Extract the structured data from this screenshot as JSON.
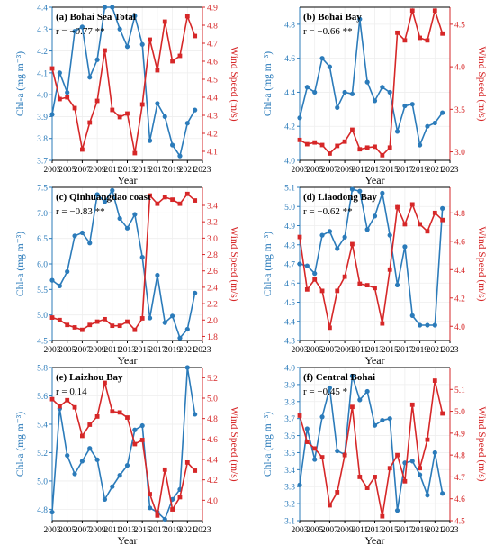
{
  "chart_data": [
    {
      "type": "line",
      "title": "(a) Bohai Sea Total",
      "annotation": "r = −0.77 **",
      "xlabel": "Year",
      "ylabel_left": "Chl-a (mg m⁻³)",
      "ylabel_right": "Wind Speed (m/s)",
      "xlim": [
        2003,
        2023
      ],
      "xticks": [
        2003,
        2005,
        2007,
        2009,
        2011,
        2013,
        2015,
        2017,
        2019,
        2021,
        2023
      ],
      "ylim_left": [
        3.7,
        4.4
      ],
      "yticks_left": [
        3.7,
        3.8,
        3.9,
        4.0,
        4.1,
        4.2,
        4.3,
        4.4
      ],
      "ylim_right": [
        4.05,
        4.9
      ],
      "yticks_right": [
        4.1,
        4.2,
        4.3,
        4.4,
        4.5,
        4.6,
        4.7,
        4.8,
        4.9
      ],
      "x": [
        2003,
        2004,
        2005,
        2006,
        2007,
        2008,
        2009,
        2010,
        2011,
        2012,
        2013,
        2014,
        2015,
        2016,
        2017,
        2018,
        2019,
        2020,
        2021,
        2022
      ],
      "series": [
        {
          "axis": "left",
          "values": [
            3.91,
            4.1,
            4.01,
            4.29,
            4.31,
            4.08,
            4.16,
            4.4,
            4.4,
            4.3,
            4.22,
            4.36,
            4.23,
            3.79,
            3.96,
            3.9,
            3.77,
            3.72,
            3.87,
            3.93
          ]
        },
        {
          "axis": "right",
          "values": [
            4.56,
            4.39,
            4.4,
            4.34,
            4.11,
            4.26,
            4.38,
            4.66,
            4.33,
            4.29,
            4.31,
            4.09,
            4.36,
            4.72,
            4.55,
            4.82,
            4.6,
            4.63,
            4.85,
            4.74
          ]
        }
      ]
    },
    {
      "type": "line",
      "title": "(b) Bohai Bay",
      "annotation": "r = −0.66 **",
      "xlabel": "Year",
      "ylabel_left": "Chl-a (mg m⁻³)",
      "ylabel_right": "Wind Speed (m/s)",
      "xlim": [
        2003,
        2023
      ],
      "xticks": [
        2003,
        2005,
        2007,
        2009,
        2011,
        2013,
        2015,
        2017,
        2019,
        2021,
        2023
      ],
      "ylim_left": [
        4.0,
        4.9
      ],
      "yticks_left": [
        4.0,
        4.2,
        4.4,
        4.6,
        4.8
      ],
      "ylim_right": [
        2.9,
        4.7
      ],
      "yticks_right": [
        3.0,
        3.5,
        4.0,
        4.5
      ],
      "x": [
        2003,
        2004,
        2005,
        2006,
        2007,
        2008,
        2009,
        2010,
        2011,
        2012,
        2013,
        2014,
        2015,
        2016,
        2017,
        2018,
        2019,
        2020,
        2021,
        2022
      ],
      "series": [
        {
          "axis": "left",
          "values": [
            4.25,
            4.43,
            4.4,
            4.6,
            4.55,
            4.31,
            4.4,
            4.39,
            4.83,
            4.46,
            4.35,
            4.43,
            4.4,
            4.17,
            4.32,
            4.33,
            4.09,
            4.2,
            4.22,
            4.28
          ]
        },
        {
          "axis": "right",
          "values": [
            3.14,
            3.09,
            3.11,
            3.08,
            2.98,
            3.07,
            3.12,
            3.26,
            3.03,
            3.05,
            3.06,
            2.96,
            3.05,
            4.4,
            4.31,
            4.66,
            4.34,
            4.31,
            4.66,
            4.39
          ]
        }
      ]
    },
    {
      "type": "line",
      "title": "(c) Qinhuangdao coast",
      "annotation": "r = −0.83 **",
      "xlabel": "Year",
      "ylabel_left": "Chl-a (mg m⁻³)",
      "ylabel_right": "Wind Speed (m/s)",
      "xlim": [
        2003,
        2023
      ],
      "xticks": [
        2003,
        2005,
        2007,
        2009,
        2011,
        2013,
        2015,
        2017,
        2019,
        2021,
        2023
      ],
      "ylim_left": [
        4.5,
        7.5
      ],
      "yticks_left": [
        4.5,
        5.0,
        5.5,
        6.0,
        6.5,
        7.0,
        7.5
      ],
      "ylim_right": [
        1.75,
        3.62
      ],
      "yticks_right": [
        1.8,
        2.0,
        2.2,
        2.4,
        2.6,
        2.8,
        3.0,
        3.2,
        3.4
      ],
      "x": [
        2003,
        2004,
        2005,
        2006,
        2007,
        2008,
        2009,
        2010,
        2011,
        2012,
        2013,
        2014,
        2015,
        2016,
        2017,
        2018,
        2019,
        2020,
        2021,
        2022
      ],
      "series": [
        {
          "axis": "left",
          "values": [
            5.68,
            5.57,
            5.85,
            6.55,
            6.61,
            6.41,
            7.36,
            7.22,
            7.44,
            6.89,
            6.7,
            6.97,
            6.13,
            4.94,
            5.78,
            4.85,
            4.98,
            4.55,
            4.72,
            5.43
          ]
        },
        {
          "axis": "right",
          "values": [
            2.03,
            2.0,
            1.94,
            1.91,
            1.88,
            1.94,
            1.98,
            2.01,
            1.93,
            1.93,
            1.98,
            1.88,
            2.02,
            3.52,
            3.42,
            3.5,
            3.47,
            3.42,
            3.54,
            3.46
          ]
        }
      ]
    },
    {
      "type": "line",
      "title": "(d) Liaodong Bay",
      "annotation": "r = −0.62 **",
      "xlabel": "Year",
      "ylabel_left": "Chl-a (mg m⁻³)",
      "ylabel_right": "Wind Speed (m/s)",
      "xlim": [
        2003,
        2023
      ],
      "xticks": [
        2003,
        2005,
        2007,
        2009,
        2011,
        2013,
        2015,
        2017,
        2019,
        2021,
        2023
      ],
      "ylim_left": [
        4.3,
        5.1
      ],
      "yticks_left": [
        4.3,
        4.4,
        4.5,
        4.6,
        4.7,
        4.8,
        4.9,
        5.0,
        5.1
      ],
      "ylim_right": [
        3.9,
        4.98
      ],
      "yticks_right": [
        4.0,
        4.2,
        4.4,
        4.6,
        4.8
      ],
      "x": [
        2003,
        2004,
        2005,
        2006,
        2007,
        2008,
        2009,
        2010,
        2011,
        2012,
        2013,
        2014,
        2015,
        2016,
        2017,
        2018,
        2019,
        2020,
        2021,
        2022
      ],
      "series": [
        {
          "axis": "left",
          "values": [
            4.7,
            4.69,
            4.65,
            4.85,
            4.87,
            4.78,
            4.84,
            5.09,
            5.08,
            4.88,
            4.95,
            5.07,
            4.85,
            4.59,
            4.79,
            4.43,
            4.38,
            4.38,
            4.38,
            4.99
          ]
        },
        {
          "axis": "right",
          "values": [
            4.63,
            4.26,
            4.33,
            4.25,
            3.99,
            4.25,
            4.35,
            4.58,
            4.3,
            4.29,
            4.27,
            4.02,
            4.4,
            4.84,
            4.72,
            4.86,
            4.72,
            4.67,
            4.8,
            4.75
          ]
        }
      ]
    },
    {
      "type": "line",
      "title": "(e) Laizhou Bay",
      "annotation": "r = 0.14",
      "xlabel": "Year",
      "ylabel_left": "Chl-a (mg m⁻³)",
      "ylabel_right": "Wind Speed (m/s)",
      "xlim": [
        2003,
        2023
      ],
      "xticks": [
        2003,
        2005,
        2007,
        2009,
        2011,
        2013,
        2015,
        2017,
        2019,
        2021,
        2023
      ],
      "ylim_left": [
        4.72,
        5.8
      ],
      "yticks_left": [
        4.8,
        5.0,
        5.2,
        5.4,
        5.6,
        5.8
      ],
      "ylim_right": [
        3.8,
        5.3
      ],
      "yticks_right": [
        4.0,
        4.2,
        4.4,
        4.6,
        4.8,
        5.0,
        5.2
      ],
      "x": [
        2003,
        2004,
        2005,
        2006,
        2007,
        2008,
        2009,
        2010,
        2011,
        2012,
        2013,
        2014,
        2015,
        2016,
        2017,
        2018,
        2019,
        2020,
        2021,
        2022
      ],
      "series": [
        {
          "axis": "left",
          "values": [
            4.78,
            5.51,
            5.18,
            5.05,
            5.14,
            5.23,
            5.15,
            4.87,
            4.96,
            5.04,
            5.11,
            5.36,
            5.39,
            4.81,
            4.78,
            4.73,
            4.87,
            4.94,
            5.8,
            5.47
          ]
        },
        {
          "axis": "right",
          "values": [
            4.99,
            4.92,
            4.98,
            4.91,
            4.63,
            4.74,
            4.82,
            5.15,
            4.87,
            4.86,
            4.81,
            4.55,
            4.59,
            4.06,
            3.85,
            4.3,
            3.91,
            4.03,
            4.37,
            4.29
          ]
        }
      ]
    },
    {
      "type": "line",
      "title": "(f) Central Bohai",
      "annotation": "r = −0.45 *",
      "xlabel": "Year",
      "ylabel_left": "Chl-a (mg m⁻³)",
      "ylabel_right": "Wind Speed (m/s)",
      "xlim": [
        2003,
        2023
      ],
      "xticks": [
        2003,
        2005,
        2007,
        2009,
        2011,
        2013,
        2015,
        2017,
        2019,
        2021,
        2023
      ],
      "ylim_left": [
        3.1,
        4.0
      ],
      "yticks_left": [
        3.1,
        3.2,
        3.3,
        3.4,
        3.5,
        3.6,
        3.7,
        3.8,
        3.9,
        4.0
      ],
      "ylim_right": [
        4.5,
        5.2
      ],
      "yticks_right": [
        4.5,
        4.6,
        4.7,
        4.8,
        4.9,
        5.0,
        5.1
      ],
      "x": [
        2003,
        2004,
        2005,
        2006,
        2007,
        2008,
        2009,
        2010,
        2011,
        2012,
        2013,
        2014,
        2015,
        2016,
        2017,
        2018,
        2019,
        2020,
        2021,
        2022
      ],
      "series": [
        {
          "axis": "left",
          "values": [
            3.31,
            3.64,
            3.46,
            3.71,
            3.88,
            3.51,
            3.49,
            3.95,
            3.81,
            3.86,
            3.66,
            3.69,
            3.7,
            3.16,
            3.44,
            3.45,
            3.37,
            3.25,
            3.5,
            3.26
          ]
        },
        {
          "axis": "right",
          "values": [
            4.98,
            4.86,
            4.83,
            4.79,
            4.57,
            4.63,
            4.8,
            5.02,
            4.7,
            4.65,
            4.7,
            4.52,
            4.74,
            4.8,
            4.68,
            5.03,
            4.74,
            4.87,
            5.14,
            4.99
          ]
        }
      ]
    }
  ],
  "colors": {
    "chl": "#2b7bba",
    "wind": "#d62728",
    "axis": "#000000",
    "grid": "#eeeeee"
  }
}
